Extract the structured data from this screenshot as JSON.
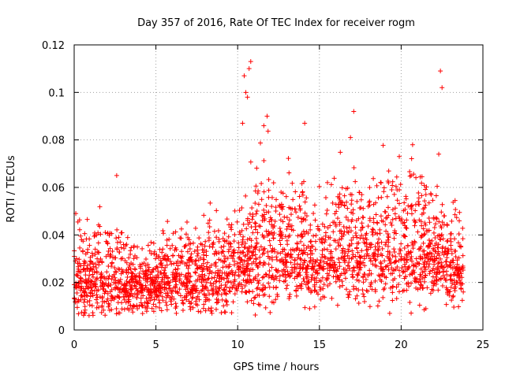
{
  "chart_data": {
    "type": "scatter",
    "title": "Day 357 of 2016, Rate Of TEC Index for receiver rogm",
    "xlabel": "GPS time / hours",
    "ylabel": "ROTI / TECUs",
    "xlim": [
      0,
      25
    ],
    "ylim": [
      0,
      0.12
    ],
    "x_ticks": [
      "0",
      "5",
      "10",
      "15",
      "20",
      "25"
    ],
    "y_ticks": [
      "0",
      "0.02",
      "0.04",
      "0.06",
      "0.08",
      "0.1",
      "0.12"
    ],
    "x_tick_values": [
      0,
      5,
      10,
      15,
      20,
      25
    ],
    "y_tick_values": [
      0,
      0.02,
      0.04,
      0.06,
      0.08,
      0.1,
      0.12
    ],
    "grid": true,
    "marker": "+",
    "series": [
      {
        "name": "ROTI",
        "color": "#ff0000",
        "approx_profile": [
          {
            "hour": 0.0,
            "median": 0.02,
            "spread": 0.012
          },
          {
            "hour": 1.0,
            "median": 0.022,
            "spread": 0.013
          },
          {
            "hour": 2.5,
            "median": 0.022,
            "spread": 0.014
          },
          {
            "hour": 4.0,
            "median": 0.017,
            "spread": 0.008
          },
          {
            "hour": 5.5,
            "median": 0.021,
            "spread": 0.011
          },
          {
            "hour": 7.5,
            "median": 0.022,
            "spread": 0.013
          },
          {
            "hour": 9.0,
            "median": 0.023,
            "spread": 0.013
          },
          {
            "hour": 10.0,
            "median": 0.024,
            "spread": 0.013
          },
          {
            "hour": 11.0,
            "median": 0.03,
            "spread": 0.018
          },
          {
            "hour": 12.0,
            "median": 0.034,
            "spread": 0.02
          },
          {
            "hour": 13.5,
            "median": 0.031,
            "spread": 0.017
          },
          {
            "hour": 15.0,
            "median": 0.029,
            "spread": 0.016
          },
          {
            "hour": 17.0,
            "median": 0.034,
            "spread": 0.017
          },
          {
            "hour": 19.0,
            "median": 0.031,
            "spread": 0.018
          },
          {
            "hour": 20.5,
            "median": 0.036,
            "spread": 0.02
          },
          {
            "hour": 22.0,
            "median": 0.031,
            "spread": 0.016
          },
          {
            "hour": 23.5,
            "median": 0.026,
            "spread": 0.013
          }
        ],
        "outliers": [
          {
            "x": 10.4,
            "y": 0.107
          },
          {
            "x": 10.5,
            "y": 0.1
          },
          {
            "x": 10.6,
            "y": 0.098
          },
          {
            "x": 10.7,
            "y": 0.11
          },
          {
            "x": 10.8,
            "y": 0.113
          },
          {
            "x": 10.3,
            "y": 0.087
          },
          {
            "x": 11.6,
            "y": 0.086
          },
          {
            "x": 11.8,
            "y": 0.09
          },
          {
            "x": 14.1,
            "y": 0.087
          },
          {
            "x": 17.1,
            "y": 0.092
          },
          {
            "x": 16.9,
            "y": 0.081
          },
          {
            "x": 20.7,
            "y": 0.078
          },
          {
            "x": 22.4,
            "y": 0.109
          },
          {
            "x": 22.5,
            "y": 0.102
          },
          {
            "x": 22.3,
            "y": 0.074
          },
          {
            "x": 2.6,
            "y": 0.065
          },
          {
            "x": 0.1,
            "y": 0.049
          },
          {
            "x": 19.3,
            "y": 0.007
          },
          {
            "x": 14.4,
            "y": 0.009
          }
        ]
      }
    ]
  }
}
